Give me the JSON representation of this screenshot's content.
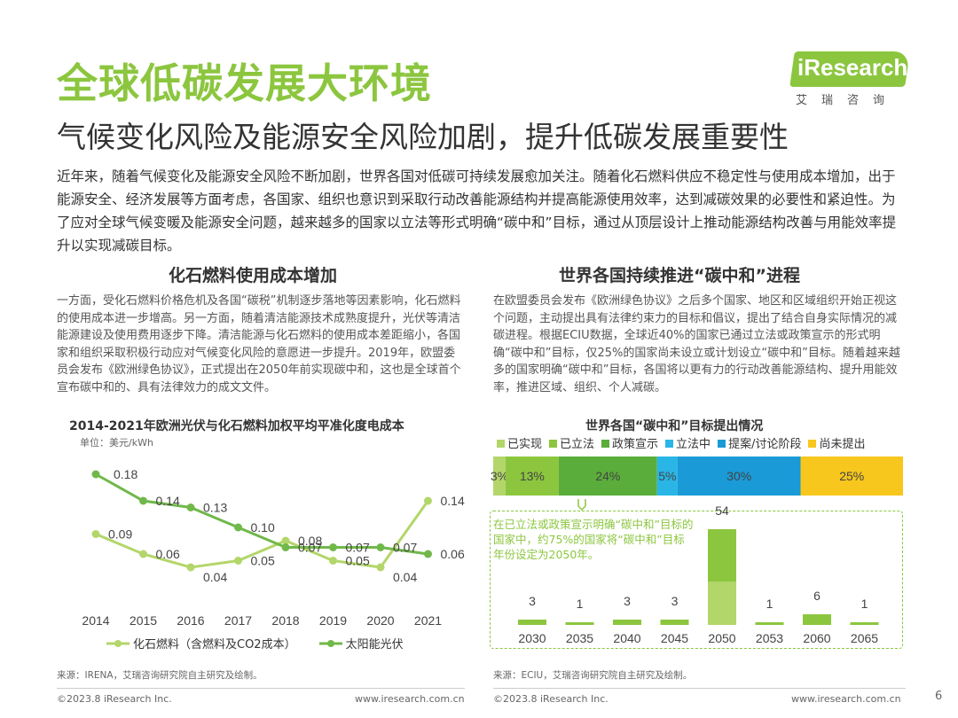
{
  "header": {
    "title": "全球低碳发展大环境",
    "subtitle": "气候变化风险及能源安全风险加剧，提升低碳发展重要性"
  },
  "logo": {
    "text": "iResearch",
    "cn": "艾瑞咨询"
  },
  "intro": "近年来，随着气候变化及能源安全风险不断加剧，世界各国对低碳可持续发展愈加关注。随着化石燃料供应不稳定性与使用成本增加，出于能源安全、经济发展等方面考虑，各国家、组织也意识到采取行动改善能源结构并提高能源使用效率，达到减碳效果的必要性和紧迫性。为了应对全球气候变暖及能源安全问题，越来越多的国家以立法等形式明确“碳中和”目标，通过从顶层设计上推动能源结构改善与用能效率提升以实现减碳目标。",
  "left": {
    "section_title": "化石燃料使用成本增加",
    "paragraph": "一方面，受化石燃料价格危机及各国“碳税”机制逐步落地等因素影响，化石燃料的使用成本进一步增高。另一方面，随着清洁能源技术成熟度提升，光伏等清洁能源建设及使用费用逐步下降。清洁能源与化石燃料的使用成本差距缩小，各国家和组织采取积极行动应对气候变化风险的意愿进一步提升。2019年，欧盟委员会发布《欧洲绿色协议》，正式提出在2050年前实现碳中和，这也是全球首个宣布碳中和的、具有法律效力的成文文件。",
    "source": "来源：IRENA，艾瑞咨询研究院自主研究及绘制。",
    "footer_left": "©2023.8 iResearch Inc.",
    "footer_right": "www.iresearch.com.cn"
  },
  "right": {
    "section_title": "世界各国持续推进“碳中和”进程",
    "paragraph": "在欧盟委员会发布《欧洲绿色协议》之后多个国家、地区和区域组织开始正视这个问题，主动提出具有法律约束力的目标和倡议，提出了结合自身实际情况的减碳进程。根据ECIU数据，全球近40%的国家已通过立法或政策宣示的形式明确“碳中和”目标，仅25%的国家尚未设立或计划设立“碳中和”目标。随着越来越多的国家明确“碳中和”目标，各国将以更有力的行动改善能源结构、提升用能效率，推进区域、组织、个人减碳。",
    "callout": "在已立法或政策宣示明确“碳中和”目标的国家中，约75%的国家将“碳中和”目标年份设定为2050年。",
    "source": "来源：ECIU，艾瑞咨询研究院自主研究及绘制。",
    "footer_left": "©2023.8 iResearch Inc.",
    "footer_right": "www.iresearch.com.cn"
  },
  "page_number": "6",
  "colors": {
    "accent": "#8cc63f",
    "dark_green": "#5aad3b",
    "mid_green": "#71b84a",
    "light_green": "#b3d66a",
    "cyan": "#29b6e6",
    "blue": "#1a9ad6",
    "yellow": "#f7c71d"
  },
  "chart_data": [
    {
      "type": "line",
      "title": "2014-2021年欧洲光伏与化石燃料加权平均平准化度电成本",
      "unit_label": "单位：美元/kWh",
      "x": [
        "2014",
        "2015",
        "2016",
        "2017",
        "2018",
        "2019",
        "2020",
        "2021"
      ],
      "series": [
        {
          "name": "化石燃料（含燃料及CO2成本）",
          "values": [
            0.09,
            0.06,
            0.04,
            0.05,
            0.08,
            0.05,
            0.04,
            0.14
          ],
          "color": "#b3d66a"
        },
        {
          "name": "太阳能光伏",
          "values": [
            0.18,
            0.14,
            0.13,
            0.1,
            0.07,
            0.07,
            0.07,
            0.06
          ],
          "color": "#71b84a"
        }
      ],
      "ylim": [
        0,
        0.2
      ]
    },
    {
      "type": "bar",
      "subtype": "stacked-100",
      "title": "世界各国“碳中和”目标提出情况",
      "series": [
        {
          "name": "已实现",
          "value": 3,
          "label": "3%",
          "color": "#b3d66a"
        },
        {
          "name": "已立法",
          "value": 13,
          "label": "13%",
          "color": "#8cc63f"
        },
        {
          "name": "政策宣示",
          "value": 24,
          "label": "24%",
          "color": "#5aad3b"
        },
        {
          "name": "立法中",
          "value": 5,
          "label": "5%",
          "color": "#29b6e6"
        },
        {
          "name": "提案/讨论阶段",
          "value": 30,
          "label": "30%",
          "color": "#1a9ad6"
        },
        {
          "name": "尚未提出",
          "value": 25,
          "label": "25%",
          "color": "#f7c71d"
        }
      ]
    },
    {
      "type": "bar",
      "categories": [
        "2030",
        "2035",
        "2040",
        "2045",
        "2050",
        "2053",
        "2060",
        "2065"
      ],
      "values": [
        3,
        1,
        3,
        3,
        54,
        1,
        6,
        1
      ],
      "ylim": [
        0,
        54
      ]
    }
  ]
}
